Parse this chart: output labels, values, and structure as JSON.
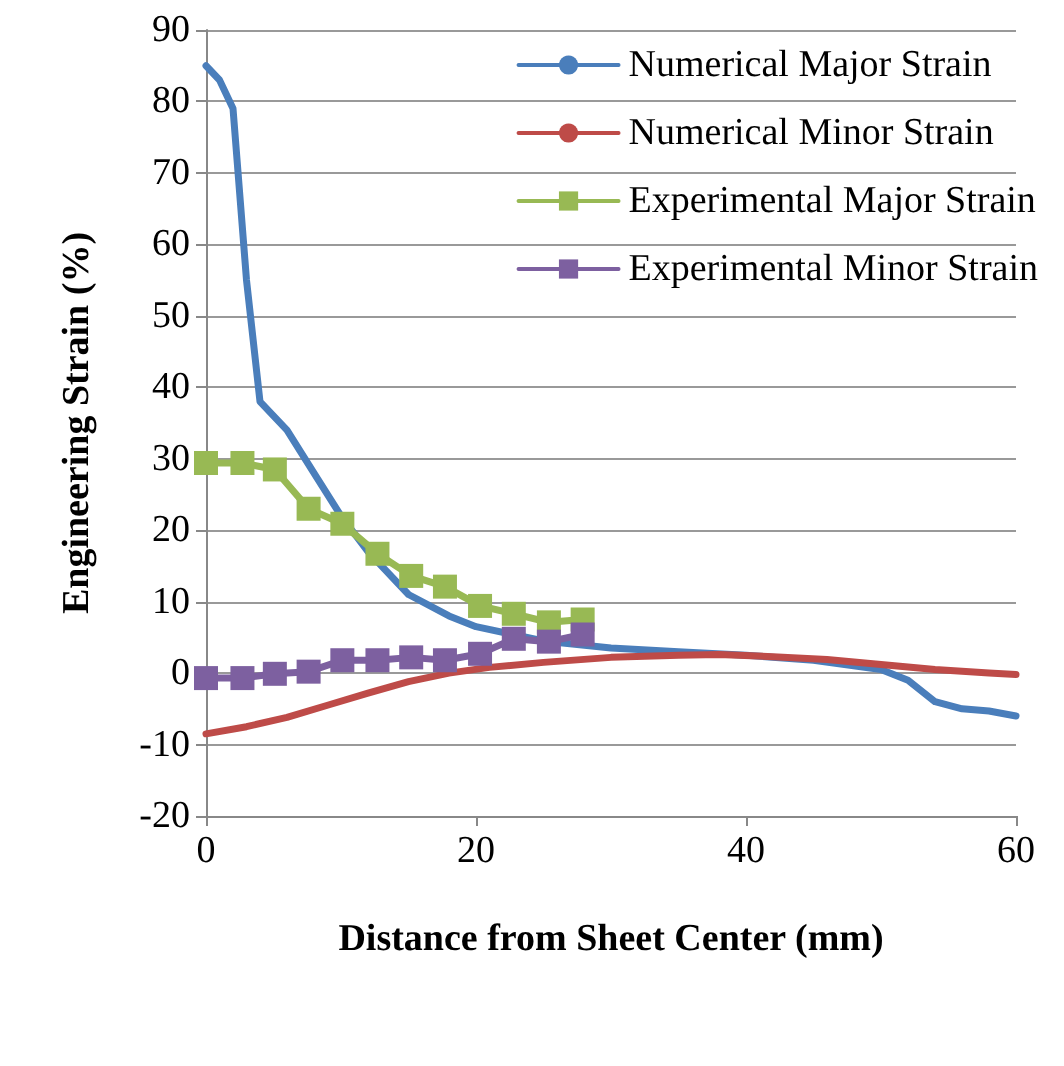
{
  "chart_data": {
    "type": "line",
    "xlabel": "Distance from Sheet Center (mm)",
    "ylabel": "Engineering Strain (%)",
    "xlim": [
      0,
      60
    ],
    "xticks": [
      0,
      20,
      40,
      60
    ],
    "ylim": [
      -20,
      90
    ],
    "yticks": [
      -20,
      -10,
      0,
      10,
      20,
      30,
      40,
      50,
      60,
      70,
      80,
      90
    ],
    "grid": "y",
    "legend": "top right",
    "line_style": "solid",
    "series": [
      {
        "name": "Numerical Major Strain",
        "color": "#4a7ebb",
        "marker": "none",
        "x": [
          0,
          1,
          2,
          3,
          4,
          6,
          8,
          10,
          12,
          15,
          18,
          20,
          25,
          30,
          35,
          40,
          45,
          50,
          52,
          54,
          56,
          58,
          60
        ],
        "values": [
          85,
          83,
          79,
          55,
          38,
          34,
          28,
          22,
          17,
          11,
          8,
          6.5,
          4.5,
          3.5,
          3,
          2.5,
          1.8,
          0.5,
          -1,
          -4,
          -5,
          -5.3,
          -6
        ]
      },
      {
        "name": "Numerical Minor Strain",
        "color": "#be4b48",
        "marker": "none",
        "x": [
          0,
          3,
          6,
          9,
          12,
          15,
          18,
          21,
          25,
          30,
          35,
          38,
          42,
          46,
          50,
          54,
          58,
          60
        ],
        "values": [
          -8.5,
          -7.5,
          -6.2,
          -4.5,
          -2.8,
          -1.2,
          0,
          0.8,
          1.5,
          2.2,
          2.5,
          2.6,
          2.3,
          1.9,
          1.2,
          0.5,
          0,
          -0.2
        ]
      },
      {
        "name": "Experimental Major Strain",
        "color": "#98b954",
        "marker": "square",
        "x": [
          0,
          2.7,
          5.1,
          7.6,
          10.1,
          12.7,
          15.2,
          17.7,
          20.3,
          22.8,
          25.4,
          27.9
        ],
        "values": [
          29.4,
          29.4,
          28.5,
          23,
          20.9,
          16.7,
          13.6,
          12.1,
          9.4,
          8.3,
          7.1,
          7.5
        ]
      },
      {
        "name": "Experimental Minor Strain",
        "color": "#7d60a0",
        "marker": "square",
        "x": [
          0,
          2.7,
          5.1,
          7.6,
          10.1,
          12.7,
          15.2,
          17.7,
          20.3,
          22.8,
          25.4,
          27.9
        ],
        "values": [
          -0.7,
          -0.7,
          -0.1,
          0.2,
          1.8,
          1.8,
          2.2,
          1.8,
          2.7,
          4.8,
          4.4,
          5.4
        ]
      }
    ]
  }
}
